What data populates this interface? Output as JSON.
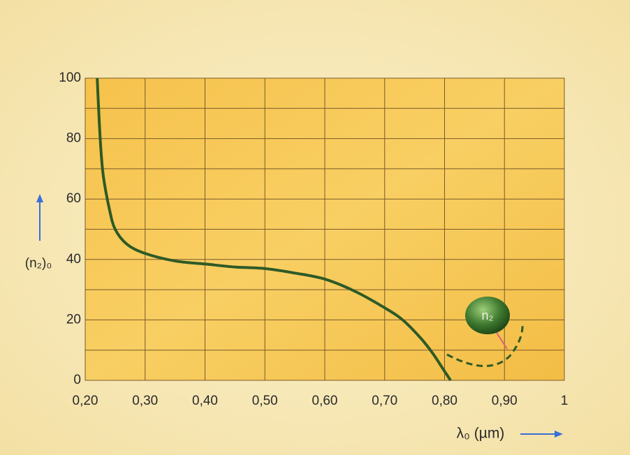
{
  "chart_data": {
    "type": "line",
    "y_label": "(n₂)₀",
    "x_label": "λ₀ (µm)",
    "annotation": "n₂",
    "x": [
      0.22,
      0.225,
      0.23,
      0.24,
      0.25,
      0.27,
      0.3,
      0.35,
      0.4,
      0.45,
      0.5,
      0.55,
      0.6,
      0.65,
      0.7,
      0.73,
      0.76,
      0.78,
      0.8,
      0.81
    ],
    "series": [
      {
        "color": "#2e5a26",
        "values": [
          100,
          80,
          68,
          57,
          50,
          45,
          42,
          39.5,
          38.5,
          37.5,
          37,
          35.5,
          33.5,
          29.5,
          24,
          20,
          14,
          9,
          3,
          0
        ]
      }
    ],
    "xlim": [
      0.2,
      1
    ],
    "xticks": [
      {
        "value": 0.2,
        "label": "0,20"
      },
      {
        "value": 0.3,
        "label": "0,30"
      },
      {
        "value": 0.4,
        "label": "0,40"
      },
      {
        "value": 0.5,
        "label": "0,50"
      },
      {
        "value": 0.6,
        "label": "0,60"
      },
      {
        "value": 0.7,
        "label": "0,70"
      },
      {
        "value": 0.8,
        "label": "0,80"
      },
      {
        "value": 0.9,
        "label": "0,90"
      },
      1
    ],
    "ylim": [
      0,
      100
    ],
    "yticks": [
      0,
      20,
      40,
      60,
      80,
      100
    ],
    "y_minor_ticks": [
      10,
      30,
      50,
      70,
      90
    ],
    "grid": true
  }
}
